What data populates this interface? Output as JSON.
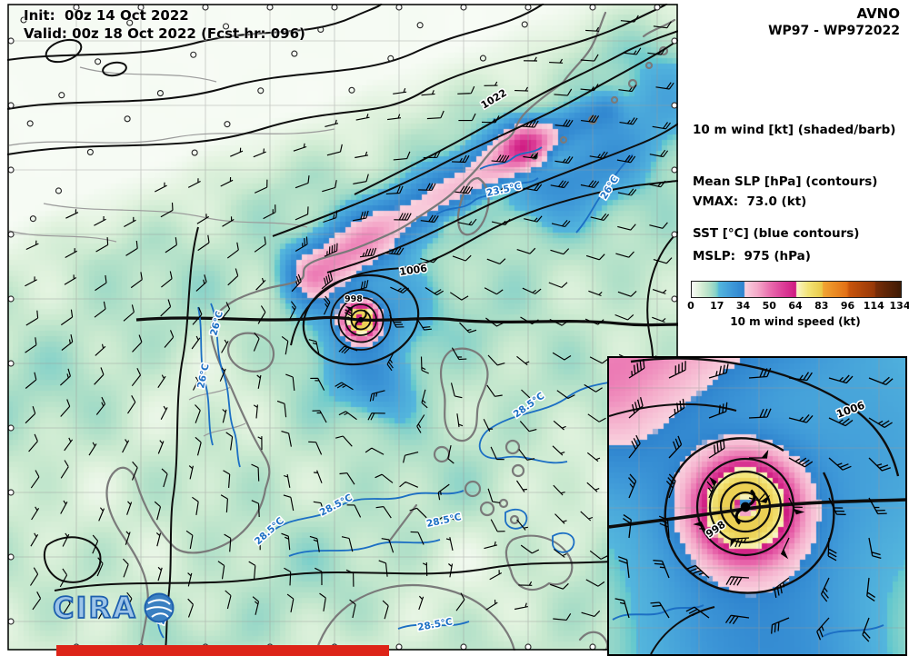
{
  "header": {
    "init": "Init:  00z 14 Oct 2022",
    "valid": "Valid: 00z 18 Oct 2022 (Fcst hr: 096)"
  },
  "model": {
    "name": "AVNO",
    "storm": "WP97 - WP972022"
  },
  "legend": {
    "line1": "10 m wind [kt] (shaded/barb)",
    "line2": "Mean SLP [hPa] (contours)",
    "line3": "SST [°C] (blue contours)"
  },
  "stats": {
    "vmax": "VMAX:  73.0 (kt)",
    "mslp": "MSLP:  975 (hPa)"
  },
  "colorbar": {
    "title": "10 m wind speed (kt)",
    "ticks": [
      "0",
      "17",
      "34",
      "50",
      "64",
      "83",
      "96",
      "114",
      "134"
    ]
  },
  "map": {
    "slp_labels": [
      "1022",
      "1006",
      "998",
      "1006",
      "998"
    ],
    "sst_labels": [
      "23.5°C",
      "26°C",
      "26°C",
      "26°C",
      "28.5°C",
      "28.5°C",
      "28.5°C",
      "28.5°C",
      "26°C",
      "28.5°C"
    ]
  },
  "logo": {
    "text": "CIRA"
  },
  "colors": {
    "sst_contour": "#1c6fc4",
    "slp_contour": "#000000",
    "coast": "#7a7a7a"
  },
  "chart_data": {
    "type": "heatmap",
    "title": "AVNO WP97 - WP972022 surface wind / SLP / SST forecast map",
    "init_time": "00z 14 Oct 2022",
    "valid_time": "00z 18 Oct 2022",
    "forecast_hour": 96,
    "vmax_kt": 73.0,
    "mslp_hpa": 975,
    "overlays": [
      "10 m wind (kt) shaded and barbs",
      "Mean SLP (hPa) black contours",
      "SST (°C) blue contours"
    ],
    "colorbar": {
      "label": "10 m wind speed (kt)",
      "tick_values": [
        0,
        17,
        34,
        50,
        64,
        83,
        96,
        114,
        134
      ],
      "segment_colors": [
        "#aee3c8",
        "#3f9fd8",
        "#ee7ab2",
        "#d0218a",
        "#f3e37a",
        "#f0a830",
        "#c85a0a",
        "#7c2f05"
      ]
    },
    "slp_contour_labels_hpa": [
      1022,
      1006,
      998
    ],
    "sst_contour_labels_c": [
      23.5,
      26,
      28.5
    ],
    "legend_position": "right",
    "grid": true,
    "inset": "zoom on storm center (bottom right)"
  }
}
